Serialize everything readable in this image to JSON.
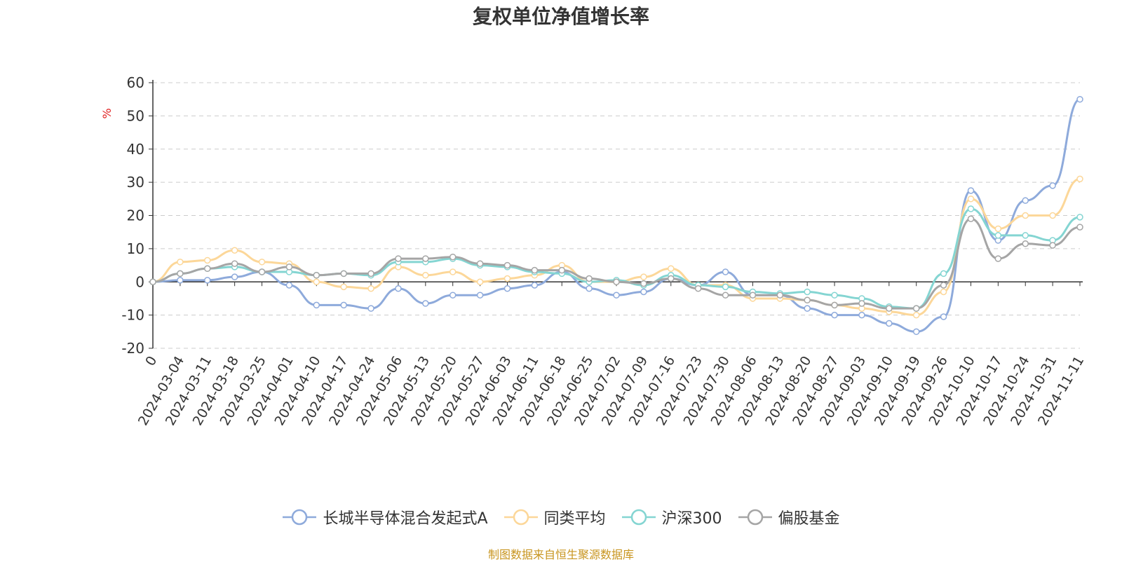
{
  "chart_data": {
    "type": "line",
    "title": "复权单位净值增长率",
    "ylabel": "%",
    "ylim": [
      -20,
      60
    ],
    "yticks": [
      -20,
      -10,
      0,
      10,
      20,
      30,
      40,
      50,
      60
    ],
    "grid": true,
    "legend_position": "bottom",
    "x_tick_labels": [
      "0",
      "2024-03-04",
      "2024-03-11",
      "2024-03-18",
      "2024-03-25",
      "2024-04-01",
      "2024-04-10",
      "2024-04-17",
      "2024-04-24",
      "2024-05-06",
      "2024-05-13",
      "2024-05-20",
      "2024-05-27",
      "2024-06-03",
      "2024-06-11",
      "2024-06-18",
      "2024-06-25",
      "2024-07-02",
      "2024-07-09",
      "2024-07-16",
      "2024-07-23",
      "2024-07-30",
      "2024-08-06",
      "2024-08-13",
      "2024-08-20",
      "2024-08-27",
      "2024-09-03",
      "2024-09-10",
      "2024-09-19",
      "2024-09-26",
      "2024-10-10",
      "2024-10-17",
      "2024-10-24",
      "2024-10-31",
      "2024-11-11"
    ],
    "series": [
      {
        "name": "长城半导体混合发起式A",
        "color": "#8eaadb",
        "values": [
          0,
          0.5,
          0.5,
          1.5,
          3,
          -1,
          -7,
          -7,
          -8,
          -2,
          -6.5,
          -4,
          -4,
          -2,
          -1,
          3,
          -2,
          -4,
          -3,
          1,
          -1,
          3,
          -4,
          -4,
          -8,
          -10,
          -10,
          -12.5,
          -15,
          -10.5,
          27.5,
          12.5,
          24.5,
          29,
          55
        ]
      },
      {
        "name": "同类平均",
        "color": "#fcd799",
        "values": [
          0,
          6,
          6.5,
          9.5,
          6,
          5.5,
          0,
          -1.5,
          -2,
          4.5,
          2,
          3,
          0,
          1,
          2,
          5,
          0,
          0,
          1.5,
          4,
          -1,
          -1,
          -5,
          -5,
          -5.5,
          -7,
          -8,
          -9,
          -10,
          -3,
          25,
          16,
          20,
          20,
          31
        ]
      },
      {
        "name": "沪深300",
        "color": "#84d5d2",
        "values": [
          0,
          2.5,
          4,
          4.5,
          3,
          3,
          2,
          2.5,
          2,
          6,
          6,
          7,
          5,
          4.5,
          3,
          2.5,
          0,
          0.5,
          -1,
          2,
          -1,
          -1.5,
          -3,
          -3.5,
          -3,
          -4,
          -5,
          -7.5,
          -8,
          2.5,
          22,
          14,
          14,
          12.5,
          19.5
        ]
      },
      {
        "name": "偏股基金",
        "color": "#a5a5a5",
        "values": [
          0,
          2.5,
          4,
          5.5,
          3,
          4.5,
          2,
          2.5,
          2.5,
          7,
          7,
          7.5,
          5.5,
          5,
          3.5,
          3.5,
          1,
          0,
          -0.5,
          1,
          -2,
          -4,
          -4,
          -4,
          -5.5,
          -7,
          -6.5,
          -8,
          -8,
          -1,
          19,
          7,
          11.5,
          11,
          16.5
        ]
      }
    ]
  },
  "source_note": "制图数据来自恒生聚源数据库"
}
